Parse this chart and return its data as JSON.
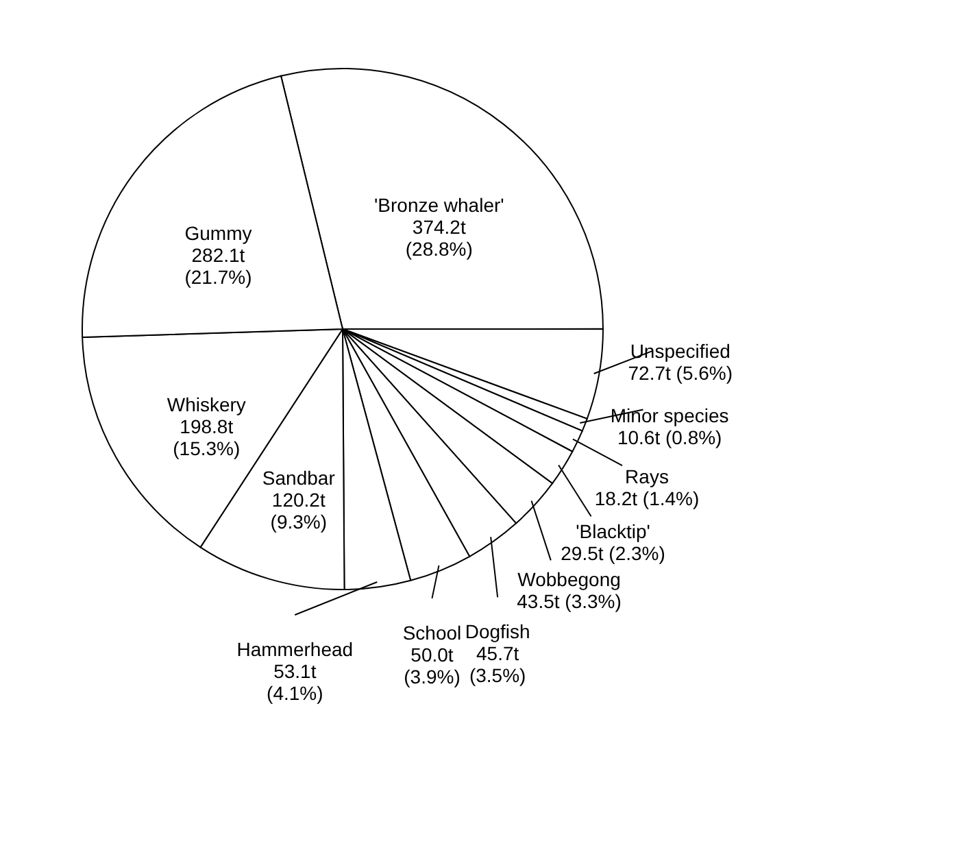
{
  "chart_data": {
    "type": "pie",
    "categories": [
      "'Bronze whaler'",
      "Unspecified",
      "Minor species",
      "Rays",
      "'Blacktip'",
      "Wobbegong",
      "Dogfish",
      "School",
      "Hammerhead",
      "Sandbar",
      "Whiskery",
      "Gummy"
    ],
    "values": [
      28.8,
      5.6,
      0.8,
      1.4,
      2.3,
      3.3,
      3.5,
      3.9,
      4.1,
      9.3,
      15.3,
      21.7
    ],
    "value_labels": [
      "374.2t (28.8%)",
      "72.7t (5.6%)",
      "10.6t (0.8%)",
      "18.2t (1.4%)",
      "29.5t (2.3%)",
      "43.5t (3.3%)",
      "45.7t (3.5%)",
      "50.0t (3.9%)",
      "53.1t (4.1%)",
      "120.2t (9.3%)",
      "198.8t (15.3%)",
      "282.1t (21.7%)"
    ],
    "colors": [
      "#ffffff",
      "#ffffff",
      "#ffffff",
      "#ffffff",
      "#ffffff",
      "#ffffff",
      "#ffffff",
      "#ffffff",
      "#ffffff",
      "#ffffff",
      "#ffffff",
      "#ffffff"
    ]
  }
}
